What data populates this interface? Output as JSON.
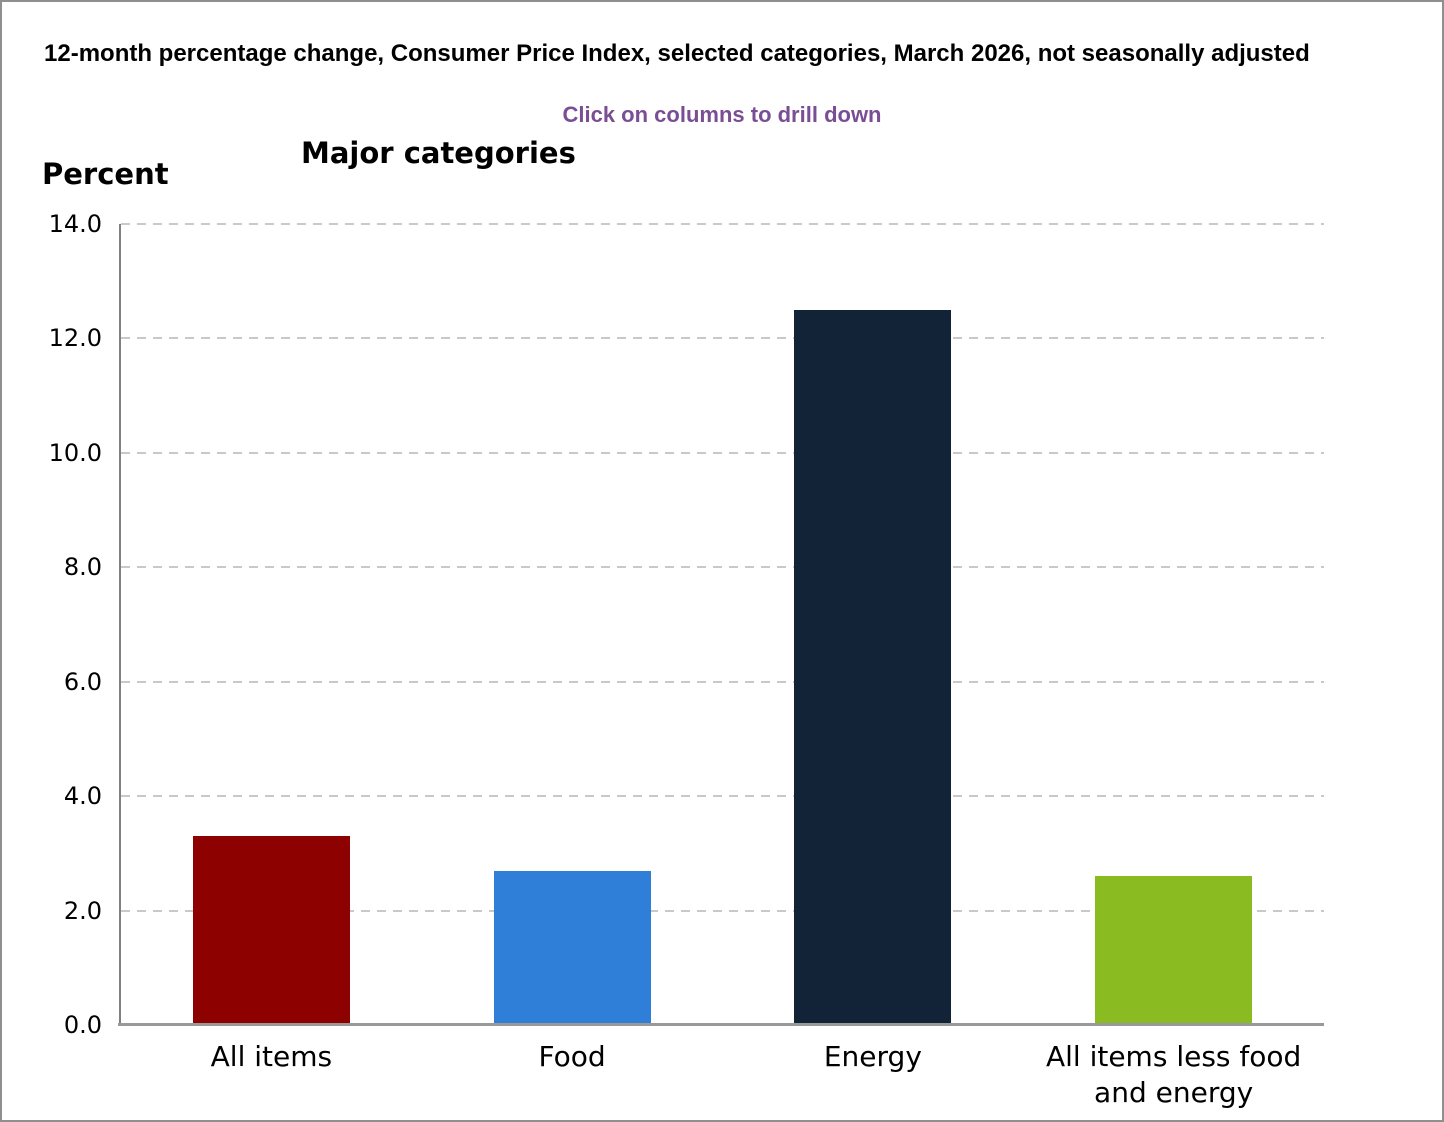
{
  "page": {
    "title": "12-month percentage change, Consumer Price Index, selected categories, March 2026, not seasonally adjusted",
    "subtitle": "Click on columns to drill down"
  },
  "colors": {
    "subtitle_text": "#7a4e94",
    "page_border": "#8f8f8f",
    "axis_line": "#808080",
    "baseline": "#999999",
    "gridline": "#c9c9c9"
  },
  "chart_data": {
    "type": "bar",
    "title": "Major categories",
    "xlabel": "",
    "ylabel": "Percent",
    "ylim": [
      0,
      14
    ],
    "ytick_interval": 2,
    "grid": "horizontal-dashed",
    "legend": "none",
    "interaction_hint": "Click on columns to drill down",
    "categories": [
      "All items",
      "Food",
      "Energy",
      "All items less food and energy"
    ],
    "values": [
      3.3,
      2.7,
      12.5,
      2.6
    ],
    "bar_colors": [
      "#8e0101",
      "#2f7ed8",
      "#122338",
      "#8abc21"
    ],
    "yticks": [
      {
        "value": 0,
        "label": "0.0"
      },
      {
        "value": 2,
        "label": "2.0"
      },
      {
        "value": 4,
        "label": "4.0"
      },
      {
        "value": 6,
        "label": "6.0"
      },
      {
        "value": 8,
        "label": "8.0"
      },
      {
        "value": 10,
        "label": "10.0"
      },
      {
        "value": 12,
        "label": "12.0"
      },
      {
        "value": 14,
        "label": "14.0"
      }
    ]
  }
}
